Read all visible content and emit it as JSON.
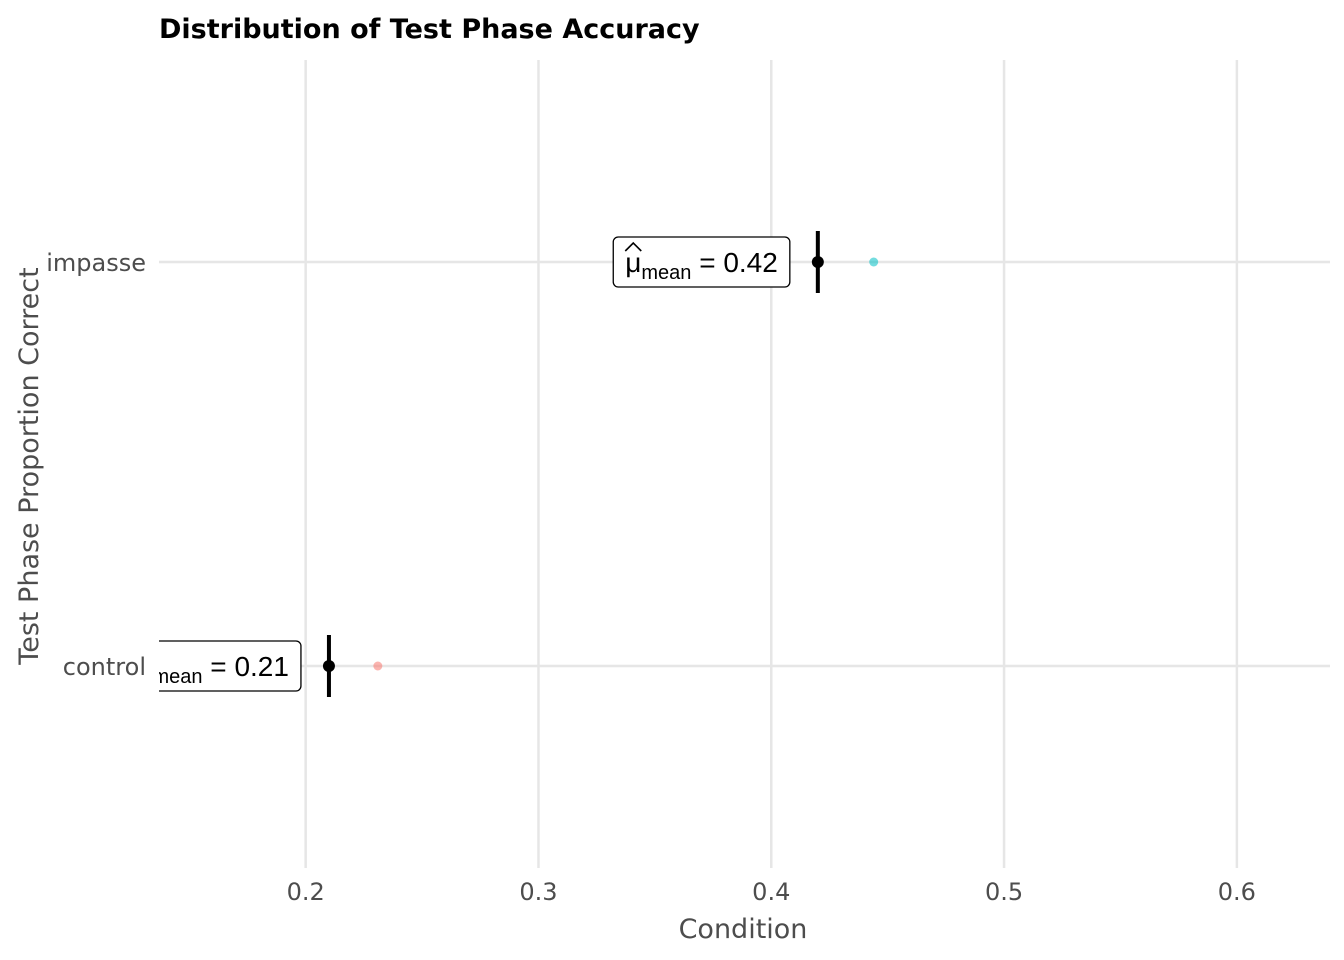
{
  "chart_data": {
    "type": "scatter",
    "title": "Distribution of Test Phase Accuracy",
    "xlabel": "Condition",
    "ylabel": "Test Phase Proportion Correct",
    "xlim": [
      0.137,
      0.64
    ],
    "xticks": [
      0.2,
      0.3,
      0.4,
      0.5,
      0.6
    ],
    "xtick_labels": [
      "0.2",
      "0.3",
      "0.4",
      "0.5",
      "0.6"
    ],
    "categories": [
      "impasse",
      "control"
    ],
    "grid": true,
    "legend": "none",
    "series": [
      {
        "category": "impasse",
        "color": "#00BFC4",
        "point": 0.444,
        "mean": 0.42,
        "ci": [
          0.42,
          0.42
        ],
        "label_symbol": "μ",
        "label_subscript": "mean",
        "label_text": " = 0.42"
      },
      {
        "category": "control",
        "color": "#F8766D",
        "point": 0.231,
        "mean": 0.21,
        "ci": [
          0.21,
          0.21
        ],
        "label_symbol": "μ",
        "label_subscript": "mean",
        "label_text": " = 0.21"
      }
    ]
  }
}
